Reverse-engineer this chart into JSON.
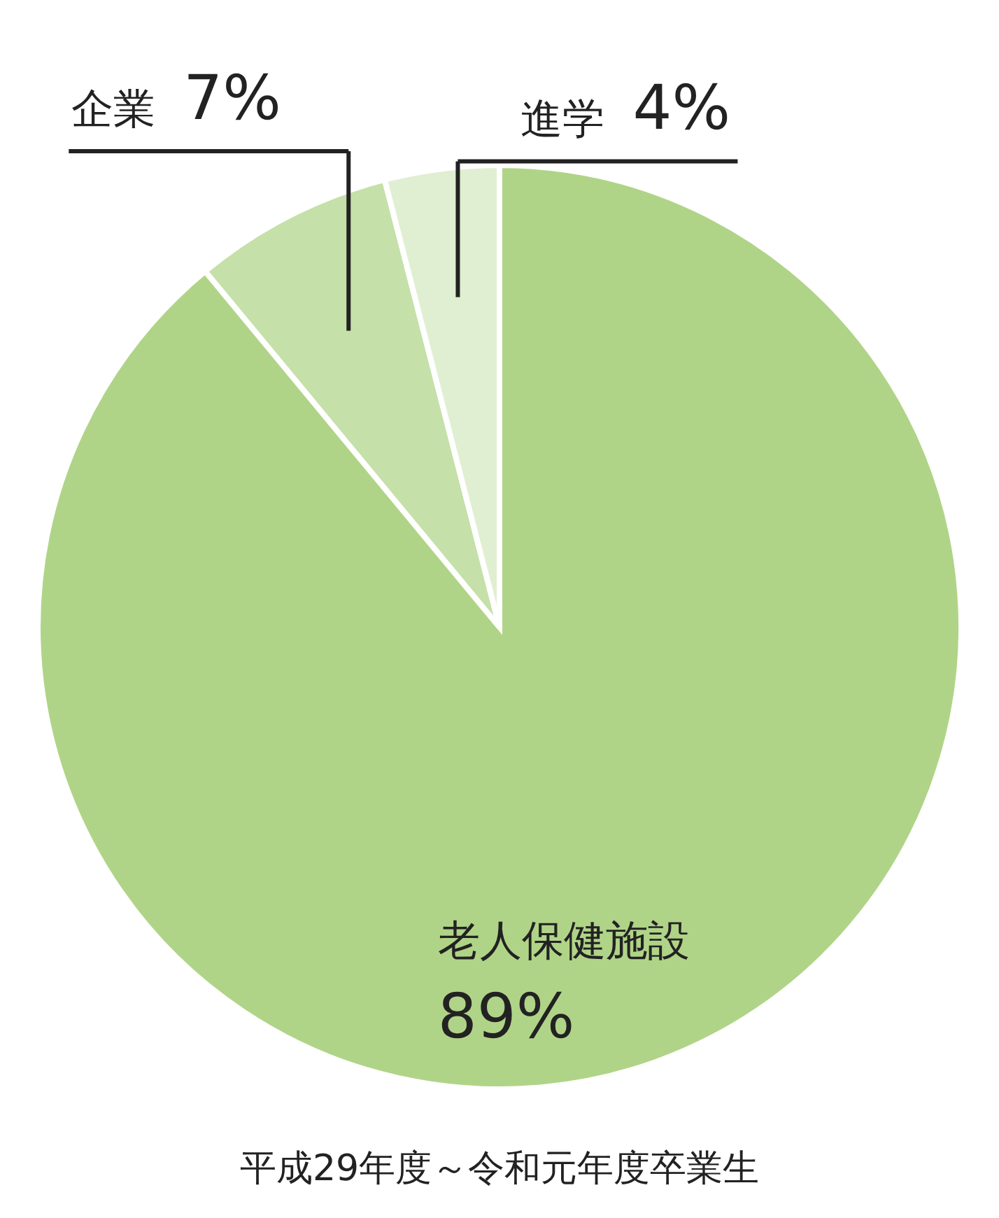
{
  "chart_data": {
    "type": "pie",
    "categories": [
      "老人保健施設",
      "企業",
      "進学"
    ],
    "values": [
      89,
      7,
      4
    ],
    "colors": [
      "#b0d487",
      "#c5e0a8",
      "#e0efd2"
    ],
    "value_labels": [
      "89%",
      "7%",
      "4%"
    ],
    "annotations": [
      "平成29年度～令和元年度卒業生"
    ]
  }
}
